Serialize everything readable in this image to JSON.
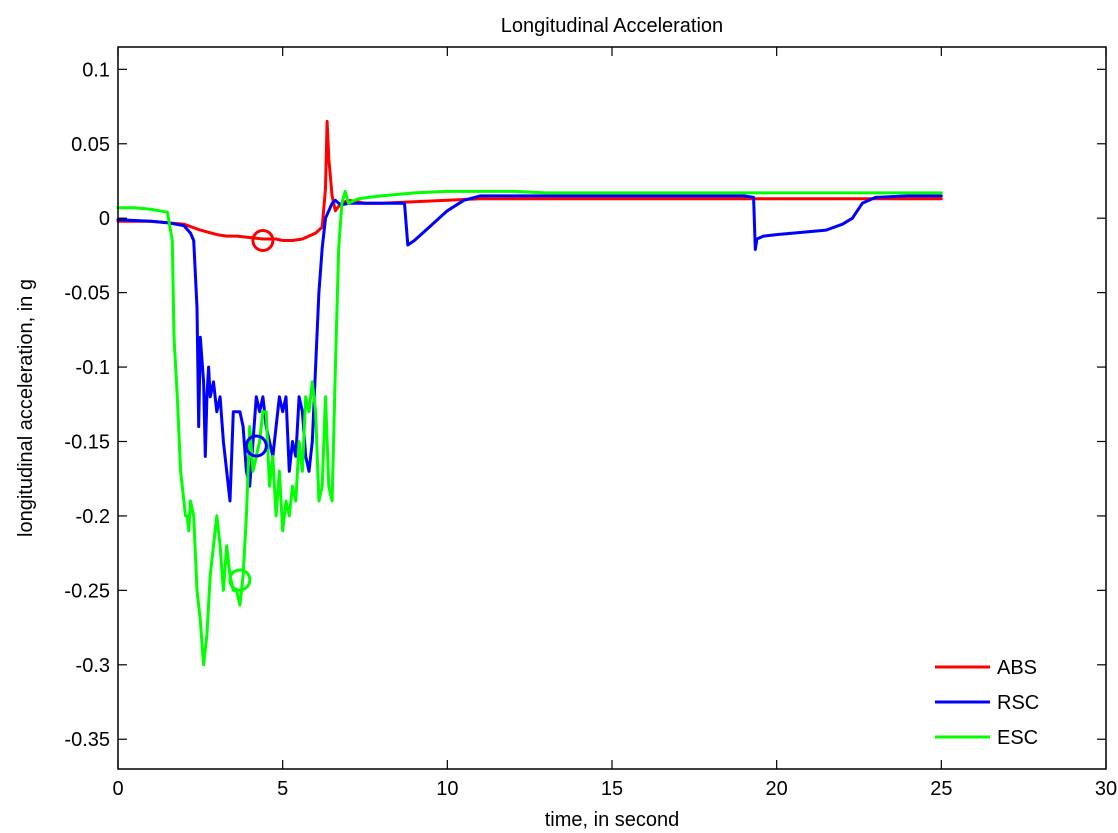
{
  "chart_data": {
    "type": "line",
    "title": "Longitudinal Acceleration",
    "xlabel": "time, in second",
    "ylabel": "longitudinal acceleration, in g",
    "xlim": [
      0,
      30
    ],
    "ylim": [
      -0.37,
      0.115
    ],
    "xticks": [
      0,
      5,
      10,
      15,
      20,
      25,
      30
    ],
    "xtick_labels": [
      "0",
      "5",
      "10",
      "15",
      "20",
      "25",
      "30"
    ],
    "yticks": [
      0.1,
      0.05,
      0,
      -0.05,
      -0.1,
      -0.15,
      -0.2,
      -0.25,
      -0.3,
      -0.35
    ],
    "ytick_labels": [
      "0.1",
      "0.05",
      "0",
      "-0.05",
      "-0.1",
      "-0.15",
      "-0.2",
      "-0.25",
      "-0.3",
      "-0.35"
    ],
    "grid": false,
    "legend_position": "bottom-right",
    "series": [
      {
        "name": "ABS",
        "color": "#ff0000",
        "x": [
          0,
          1,
          2,
          2.5,
          3,
          3.3,
          3.6,
          4,
          4.4,
          4.8,
          5,
          5.3,
          5.6,
          6,
          6.2,
          6.3,
          6.35,
          6.4,
          6.5,
          6.6,
          6.7,
          6.8,
          7,
          7.3,
          7.5,
          8,
          9,
          10,
          11,
          12,
          13,
          14,
          15,
          16,
          17,
          18,
          19,
          20,
          21,
          22,
          23,
          24,
          25
        ],
        "y": [
          -0.002,
          -0.002,
          -0.004,
          -0.008,
          -0.011,
          -0.012,
          -0.012,
          -0.013,
          -0.014,
          -0.014,
          -0.015,
          -0.015,
          -0.014,
          -0.01,
          -0.006,
          0.02,
          0.065,
          0.04,
          0.015,
          0.005,
          0.008,
          0.01,
          0.012,
          0.011,
          0.01,
          0.01,
          0.011,
          0.012,
          0.013,
          0.013,
          0.013,
          0.013,
          0.013,
          0.013,
          0.013,
          0.013,
          0.013,
          0.013,
          0.013,
          0.013,
          0.013,
          0.013,
          0.013
        ]
      },
      {
        "name": "RSC",
        "color": "#0000ff",
        "x": [
          0,
          1,
          1.5,
          2,
          2.2,
          2.3,
          2.4,
          2.45,
          2.5,
          2.6,
          2.65,
          2.7,
          2.75,
          2.8,
          2.9,
          3.0,
          3.1,
          3.2,
          3.3,
          3.4,
          3.5,
          3.6,
          3.7,
          3.8,
          3.9,
          4.0,
          4.1,
          4.2,
          4.3,
          4.4,
          4.5,
          4.6,
          4.7,
          4.8,
          4.9,
          5.0,
          5.1,
          5.2,
          5.3,
          5.4,
          5.5,
          5.6,
          5.7,
          5.8,
          5.9,
          6.0,
          6.1,
          6.2,
          6.3,
          6.4,
          6.5,
          6.6,
          6.7,
          6.8,
          7.0,
          7.2,
          7.5,
          8.0,
          8.5,
          8.7,
          8.8,
          9.0,
          9.5,
          10.0,
          10.5,
          11.0,
          12.0,
          13.0,
          14.0,
          15.0,
          16.0,
          17.0,
          18.0,
          19.0,
          19.3,
          19.35,
          19.4,
          19.6,
          20.0,
          20.5,
          21.0,
          21.5,
          22.0,
          22.3,
          22.6,
          23.0,
          24.0,
          25.0
        ],
        "y": [
          -0.001,
          -0.002,
          -0.003,
          -0.005,
          -0.01,
          -0.015,
          -0.06,
          -0.14,
          -0.08,
          -0.11,
          -0.16,
          -0.12,
          -0.1,
          -0.12,
          -0.11,
          -0.13,
          -0.12,
          -0.15,
          -0.17,
          -0.19,
          -0.13,
          -0.13,
          -0.13,
          -0.14,
          -0.17,
          -0.18,
          -0.15,
          -0.12,
          -0.13,
          -0.12,
          -0.14,
          -0.15,
          -0.16,
          -0.14,
          -0.12,
          -0.13,
          -0.12,
          -0.17,
          -0.15,
          -0.16,
          -0.12,
          -0.13,
          -0.16,
          -0.17,
          -0.15,
          -0.1,
          -0.05,
          -0.02,
          0.0,
          0.005,
          0.01,
          0.012,
          0.01,
          0.009,
          0.01,
          0.01,
          0.01,
          0.01,
          0.01,
          0.01,
          -0.018,
          -0.015,
          -0.005,
          0.005,
          0.012,
          0.015,
          0.015,
          0.015,
          0.015,
          0.015,
          0.015,
          0.015,
          0.015,
          0.015,
          0.014,
          -0.021,
          -0.014,
          -0.012,
          -0.011,
          -0.01,
          -0.009,
          -0.008,
          -0.004,
          0.0,
          0.01,
          0.014,
          0.015,
          0.015
        ]
      },
      {
        "name": "ESC",
        "color": "#00ff00",
        "x": [
          0,
          0.5,
          1.0,
          1.5,
          1.65,
          1.7,
          1.8,
          1.9,
          2.0,
          2.05,
          2.1,
          2.15,
          2.2,
          2.3,
          2.4,
          2.5,
          2.6,
          2.7,
          2.8,
          2.9,
          3.0,
          3.1,
          3.2,
          3.3,
          3.4,
          3.5,
          3.6,
          3.7,
          3.8,
          3.9,
          4.0,
          4.1,
          4.2,
          4.3,
          4.4,
          4.5,
          4.6,
          4.7,
          4.8,
          4.9,
          5.0,
          5.1,
          5.2,
          5.3,
          5.4,
          5.5,
          5.6,
          5.7,
          5.8,
          5.9,
          6.0,
          6.1,
          6.2,
          6.3,
          6.4,
          6.5,
          6.6,
          6.7,
          6.8,
          6.9,
          7.0,
          7.3,
          7.6,
          8.0,
          9.0,
          10.0,
          11.0,
          12.0,
          13.0,
          14.0,
          15.0,
          16.0,
          17.0,
          18.0,
          19.0,
          20.0,
          21.0,
          22.0,
          23.0,
          24.0,
          25.0
        ],
        "y": [
          0.007,
          0.007,
          0.006,
          0.004,
          -0.015,
          -0.08,
          -0.12,
          -0.17,
          -0.19,
          -0.2,
          -0.2,
          -0.21,
          -0.19,
          -0.2,
          -0.25,
          -0.27,
          -0.3,
          -0.28,
          -0.24,
          -0.22,
          -0.2,
          -0.22,
          -0.25,
          -0.22,
          -0.24,
          -0.25,
          -0.25,
          -0.26,
          -0.24,
          -0.2,
          -0.14,
          -0.17,
          -0.16,
          -0.15,
          -0.13,
          -0.13,
          -0.18,
          -0.16,
          -0.2,
          -0.17,
          -0.21,
          -0.19,
          -0.2,
          -0.18,
          -0.19,
          -0.15,
          -0.17,
          -0.12,
          -0.13,
          -0.11,
          -0.13,
          -0.19,
          -0.18,
          -0.12,
          -0.18,
          -0.19,
          -0.1,
          -0.02,
          0.01,
          0.018,
          0.01,
          0.013,
          0.014,
          0.015,
          0.017,
          0.018,
          0.018,
          0.018,
          0.017,
          0.017,
          0.017,
          0.017,
          0.017,
          0.017,
          0.017,
          0.017,
          0.017,
          0.017,
          0.017,
          0.017,
          0.017
        ]
      }
    ],
    "markers": [
      {
        "series": "ABS",
        "x": 4.4,
        "y": -0.015
      },
      {
        "series": "RSC",
        "x": 4.2,
        "y": -0.153
      },
      {
        "series": "ESC",
        "x": 3.7,
        "y": -0.243
      }
    ]
  }
}
